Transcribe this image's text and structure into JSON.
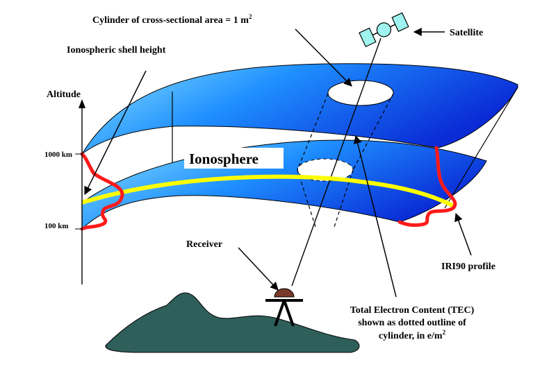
{
  "labels": {
    "cylinder_prefix": "Cylinder of cross-sectional area = 1 m",
    "cylinder_sup": "2",
    "satellite": "Satellite",
    "shell_height": "Ionospheric shell height",
    "altitude": "Altitude",
    "alt_high": "1000 km",
    "alt_low": "100 km",
    "ionosphere": "Ionosphere",
    "receiver": "Receiver",
    "iri_profile": "IRI90 profile",
    "tec_line1": "Total Electron Content (TEC)",
    "tec_line2": "shown as dotted outline of",
    "tec_line3_prefix": "cylinder, in e/m",
    "tec_line3_sup": "2"
  },
  "colors": {
    "shell_light": "#8fe6ff",
    "shell_mid": "#1e8fff",
    "shell_dark": "#0a2bd6",
    "profile": "#ff1a1a",
    "shell_height_line": "#ffff00",
    "terrain": "#2f5f5a",
    "receiver_dome": "#7a3a2a",
    "satellite": "#9ff4f0"
  },
  "icons": {
    "satellite": "satellite-icon",
    "receiver": "receiver-antenna-icon"
  }
}
